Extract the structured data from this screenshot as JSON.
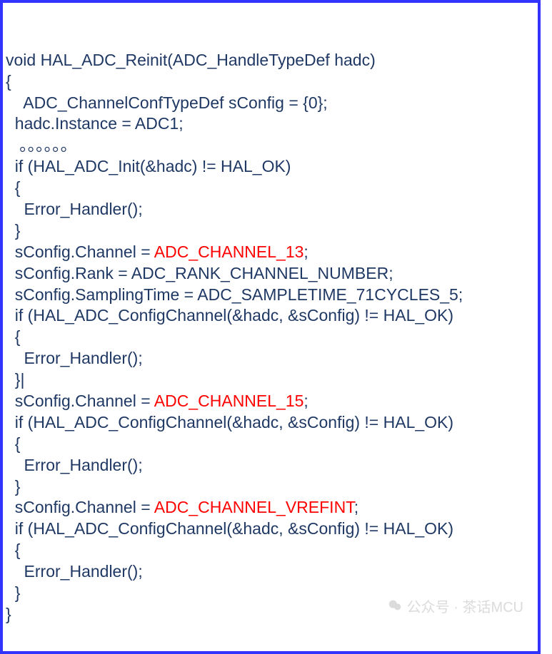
{
  "colors": {
    "border": "#3333ff",
    "text": "#1f3864",
    "highlight": "#ff0000",
    "watermark": "#cccccc",
    "background": "#ffffff"
  },
  "typography": {
    "fontFamily": "Arial",
    "fontSizePx": 23,
    "lineHeight": 1.3
  },
  "watermark": {
    "text": "公众号 · 茶话MCU",
    "iconName": "wechat-icon"
  },
  "code": {
    "lines": [
      {
        "text": "void HAL_ADC_Reinit(ADC_HandleTypeDef hadc)"
      },
      {
        "text": "{"
      },
      {
        "text": "    ADC_ChannelConfTypeDef sConfig = {0};"
      },
      {
        "text": "  hadc.Instance = ADC1;"
      },
      {
        "text": "   。。。。。。"
      },
      {
        "text": "  if (HAL_ADC_Init(&hadc) != HAL_OK)"
      },
      {
        "text": "  {"
      },
      {
        "text": "    Error_Handler();"
      },
      {
        "text": "  }"
      },
      {
        "prefix": "  sConfig.Channel = ",
        "hl": "ADC_CHANNEL_13",
        "suffix": ";"
      },
      {
        "text": "  sConfig.Rank = ADC_RANK_CHANNEL_NUMBER;"
      },
      {
        "text": "  sConfig.SamplingTime = ADC_SAMPLETIME_71CYCLES_5;"
      },
      {
        "text": "  if (HAL_ADC_ConfigChannel(&hadc, &sConfig) != HAL_OK)"
      },
      {
        "text": "  {"
      },
      {
        "text": "    Error_Handler();"
      },
      {
        "text": "  }|"
      },
      {
        "prefix": "  sConfig.Channel = ",
        "hl": "ADC_CHANNEL_15",
        "suffix": ";"
      },
      {
        "text": "  if (HAL_ADC_ConfigChannel(&hadc, &sConfig) != HAL_OK)"
      },
      {
        "text": "  {"
      },
      {
        "text": "    Error_Handler();"
      },
      {
        "text": "  }"
      },
      {
        "prefix": "  sConfig.Channel = ",
        "hl": "ADC_CHANNEL_VREFINT",
        "suffix": ";"
      },
      {
        "text": "  if (HAL_ADC_ConfigChannel(&hadc, &sConfig) != HAL_OK)"
      },
      {
        "text": "  {"
      },
      {
        "text": "    Error_Handler();"
      },
      {
        "text": "  }"
      },
      {
        "text": "}"
      }
    ]
  }
}
